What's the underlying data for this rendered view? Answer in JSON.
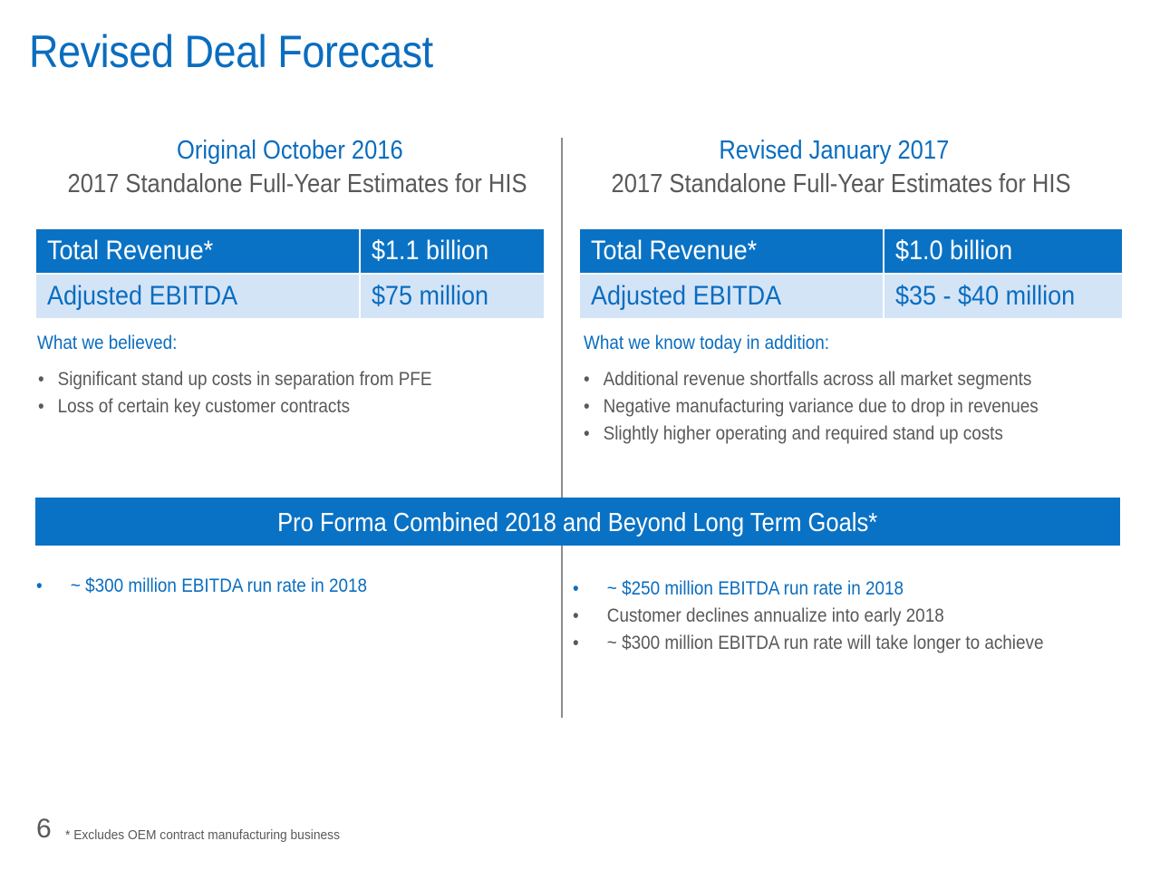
{
  "title": "Revised Deal Forecast",
  "left": {
    "heading": "Original October 2016",
    "subheading": "2017 Standalone Full-Year Estimates for HIS",
    "table": [
      {
        "label": "Total Revenue*",
        "value": "$1.1 billion"
      },
      {
        "label": "Adjusted EBITDA",
        "value": "$75 million"
      }
    ],
    "notes_title": "What we believed:",
    "notes": [
      "Significant stand up costs in separation from PFE",
      "Loss of certain key customer contracts"
    ]
  },
  "right": {
    "heading": "Revised January 2017",
    "subheading": "2017 Standalone Full-Year Estimates for HIS",
    "table": [
      {
        "label": "Total Revenue*",
        "value": "$1.0 billion"
      },
      {
        "label": "Adjusted EBITDA",
        "value": "$35 - $40 million"
      }
    ],
    "notes_title": "What we know today in addition:",
    "notes": [
      "Additional revenue shortfalls across all market segments",
      "Negative manufacturing variance due to drop in revenues",
      "Slightly higher operating and required stand up costs"
    ]
  },
  "banner": "Pro Forma Combined 2018 and Beyond Long Term Goals*",
  "goals_left": [
    "~ $300 million EBITDA run rate in 2018"
  ],
  "goals_right": [
    "~ $250 million EBITDA run rate in 2018",
    "Customer declines annualize into early 2018",
    "~ $300 million EBITDA run rate will take longer to achieve"
  ],
  "bullet": "•",
  "page_number": "6",
  "footnote": "* Excludes OEM contract manufacturing business",
  "colors": {
    "accent": "#0a6dbf",
    "banner": "#0a72c4",
    "light_row": "#d4e4f7",
    "text": "#595959"
  }
}
